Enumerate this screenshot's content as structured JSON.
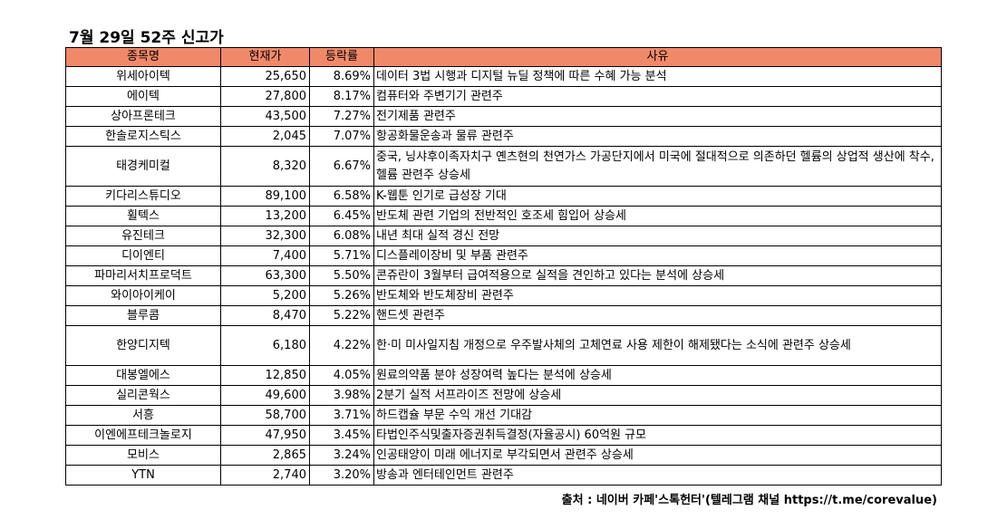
{
  "title": "7월 29일 52주 신고가",
  "headers": [
    "종목명",
    "현재가",
    "등락률",
    "사유"
  ],
  "rows": [
    {
      "name": "위세아이텍",
      "price": "25,650",
      "change": "8.69%",
      "reason": "데이터 3법 시행과 디지털 뉴딜 정책에 따른 수혜 가능 분석"
    },
    {
      "name": "에이텍",
      "price": "27,800",
      "change": "8.17%",
      "reason": "컴퓨터와 주변기기 관련주"
    },
    {
      "name": "상아프론테크",
      "price": "43,500",
      "change": "7.27%",
      "reason": "전기제품 관련주"
    },
    {
      "name": "한솔로지스틱스",
      "price": "2,045",
      "change": "7.07%",
      "reason": "항공화물운송과 물류 관련주"
    },
    {
      "name": "태경케미컬",
      "price": "8,320",
      "change": "6.67%",
      "reason": "중국, 닝샤후이족자치구 옌츠현의 천연가스 가공단지에서 미국에 절대적으로 의존하던 헬륨의 상업적 생산에 착수, 헬륨 관련주 상승세"
    },
    {
      "name": "키다리스튜디오",
      "price": "89,100",
      "change": "6.58%",
      "reason": "K-웹툰 인기로 급성장 기대"
    },
    {
      "name": "휠텍스",
      "price": "13,200",
      "change": "6.45%",
      "reason": "반도체 관련 기업의 전반적인 호조세 힘입어 상승세"
    },
    {
      "name": "유진테크",
      "price": "32,300",
      "change": "6.08%",
      "reason": "내년 최대 실적 경신 전망"
    },
    {
      "name": "디이엔티",
      "price": "7,400",
      "change": "5.71%",
      "reason": "디스플레이장비 및 부품 관련주"
    },
    {
      "name": "파마리서치프로덕트",
      "price": "63,300",
      "change": "5.50%",
      "reason": "콘쥬란이 3월부터 급여적용으로 실적을 견인하고 있다는 분석에 상승세"
    },
    {
      "name": "와이아이케이",
      "price": "5,200",
      "change": "5.26%",
      "reason": "반도체와 반도체장비 관련주"
    },
    {
      "name": "블루콤",
      "price": "8,470",
      "change": "5.22%",
      "reason": "핸드셋 관련주"
    },
    {
      "name": "한양디지텍",
      "price": "6,180",
      "change": "4.22%",
      "reason": "한·미 미사일지침 개정으로 우주발사체의 고체연료 사용 제한이 해제됐다는 소식에 관련주 상승세"
    },
    {
      "name": "대봉엘에스",
      "price": "12,850",
      "change": "4.05%",
      "reason": "원료의약품 분야 성장여력 높다는 분석에 상승세"
    },
    {
      "name": "실리콘웍스",
      "price": "49,600",
      "change": "3.98%",
      "reason": "2분기 실적 서프라이즈 전망에 상승세"
    },
    {
      "name": "서흥",
      "price": "58,700",
      "change": "3.71%",
      "reason": "하드캡슐 부문 수익 개선 기대감"
    },
    {
      "name": "이엔에프테크놀로지",
      "price": "47,950",
      "change": "3.45%",
      "reason": "타법인주식및출자증권취득결정(자율공시) 60억원 규모"
    },
    {
      "name": "모비스",
      "price": "2,865",
      "change": "3.24%",
      "reason": "인공태양이 미래 에너지로 부각되면서 관련주 상승세"
    },
    {
      "name": "YTN",
      "price": "2,740",
      "change": "3.20%",
      "reason": "방송과 엔터테인먼트 관련주"
    }
  ],
  "footer": "출처 : 네이버 카페'스톡헌터'(텔레그램 채널 https://t.me/corevalue)",
  "colors": {
    "header_bg": "#f0896a"
  }
}
